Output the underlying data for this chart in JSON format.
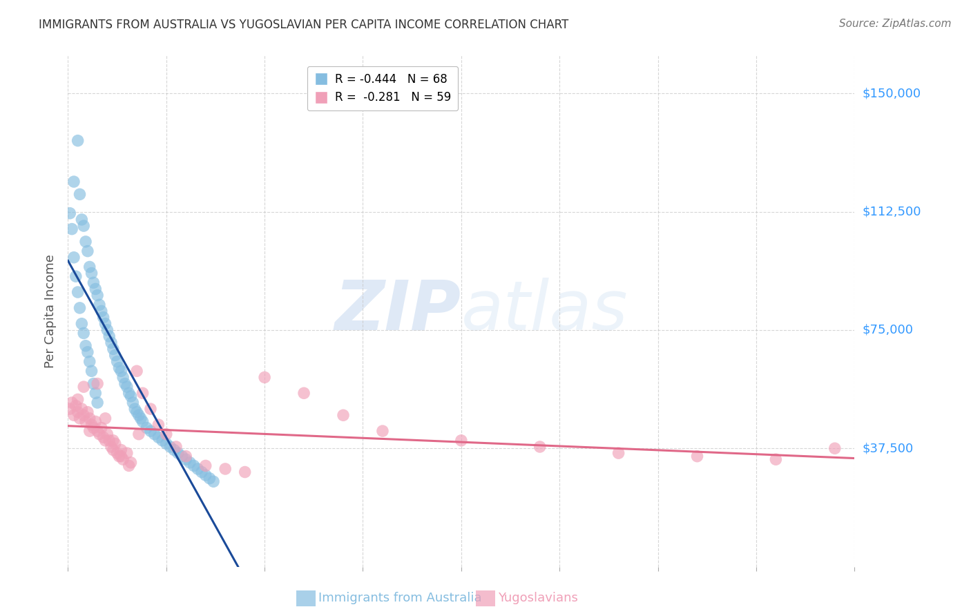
{
  "title": "IMMIGRANTS FROM AUSTRALIA VS YUGOSLAVIAN PER CAPITA INCOME CORRELATION CHART",
  "source": "Source: ZipAtlas.com",
  "ylabel": "Per Capita Income",
  "ytick_labels": [
    "$37,500",
    "$75,000",
    "$112,500",
    "$150,000"
  ],
  "ytick_values": [
    37500,
    75000,
    112500,
    150000
  ],
  "ymin": 0,
  "ymax": 162000,
  "xmin": 0.0,
  "xmax": 0.4,
  "watermark_zip": "ZIP",
  "watermark_atlas": "atlas",
  "australia_color": "#85bde0",
  "yugoslavia_color": "#f0a0b8",
  "australia_line_color": "#1a4a99",
  "yugoslavia_line_color": "#e06888",
  "background_color": "#ffffff",
  "grid_color": "#cccccc",
  "title_color": "#333333",
  "axis_label_color": "#3399ff",
  "legend_aus_label": "R = -0.444   N = 68",
  "legend_yug_label": "R =  -0.281   N = 59",
  "bottom_aus_label": "Immigrants from Australia",
  "bottom_yug_label": "Yugoslavians",
  "australia_scatter_x": [
    0.005,
    0.003,
    0.006,
    0.007,
    0.008,
    0.009,
    0.01,
    0.011,
    0.012,
    0.013,
    0.014,
    0.015,
    0.016,
    0.017,
    0.018,
    0.019,
    0.02,
    0.021,
    0.022,
    0.023,
    0.024,
    0.025,
    0.026,
    0.027,
    0.028,
    0.029,
    0.03,
    0.031,
    0.032,
    0.033,
    0.034,
    0.035,
    0.036,
    0.037,
    0.038,
    0.04,
    0.042,
    0.044,
    0.046,
    0.048,
    0.05,
    0.052,
    0.054,
    0.056,
    0.058,
    0.06,
    0.062,
    0.064,
    0.066,
    0.068,
    0.07,
    0.072,
    0.074,
    0.001,
    0.002,
    0.003,
    0.004,
    0.005,
    0.006,
    0.007,
    0.008,
    0.009,
    0.01,
    0.011,
    0.012,
    0.013,
    0.014,
    0.015
  ],
  "australia_scatter_y": [
    135000,
    122000,
    118000,
    110000,
    108000,
    103000,
    100000,
    95000,
    93000,
    90000,
    88000,
    86000,
    83000,
    81000,
    79000,
    77000,
    75000,
    73000,
    71000,
    69000,
    67000,
    65000,
    63000,
    62000,
    60000,
    58000,
    57000,
    55000,
    54000,
    52000,
    50000,
    49000,
    48000,
    47000,
    46000,
    44000,
    43000,
    42000,
    41000,
    40000,
    39000,
    38000,
    37000,
    36000,
    35000,
    34000,
    33000,
    32000,
    31000,
    30000,
    29000,
    28000,
    27000,
    112000,
    107000,
    98000,
    92000,
    87000,
    82000,
    77000,
    74000,
    70000,
    68000,
    65000,
    62000,
    58000,
    55000,
    52000
  ],
  "yugoslavia_scatter_x": [
    0.001,
    0.002,
    0.003,
    0.004,
    0.005,
    0.006,
    0.007,
    0.008,
    0.009,
    0.01,
    0.011,
    0.012,
    0.013,
    0.014,
    0.015,
    0.016,
    0.017,
    0.018,
    0.019,
    0.02,
    0.021,
    0.022,
    0.023,
    0.024,
    0.025,
    0.026,
    0.027,
    0.028,
    0.03,
    0.032,
    0.035,
    0.038,
    0.042,
    0.046,
    0.05,
    0.055,
    0.06,
    0.07,
    0.08,
    0.09,
    0.1,
    0.12,
    0.14,
    0.16,
    0.2,
    0.24,
    0.28,
    0.32,
    0.36,
    0.39,
    0.005,
    0.008,
    0.011,
    0.015,
    0.019,
    0.023,
    0.027,
    0.031,
    0.036
  ],
  "yugoslavia_scatter_y": [
    50000,
    52000,
    48000,
    51000,
    49000,
    47000,
    50000,
    48000,
    46000,
    49000,
    47000,
    45000,
    44000,
    46000,
    43000,
    42000,
    44000,
    41000,
    40000,
    42000,
    40000,
    38000,
    37000,
    39000,
    36000,
    35000,
    37000,
    34000,
    36000,
    33000,
    62000,
    55000,
    50000,
    45000,
    42000,
    38000,
    35000,
    32000,
    31000,
    30000,
    60000,
    55000,
    48000,
    43000,
    40000,
    38000,
    36000,
    35000,
    34000,
    37500,
    53000,
    57000,
    43000,
    58000,
    47000,
    40000,
    35000,
    32000,
    42000
  ]
}
